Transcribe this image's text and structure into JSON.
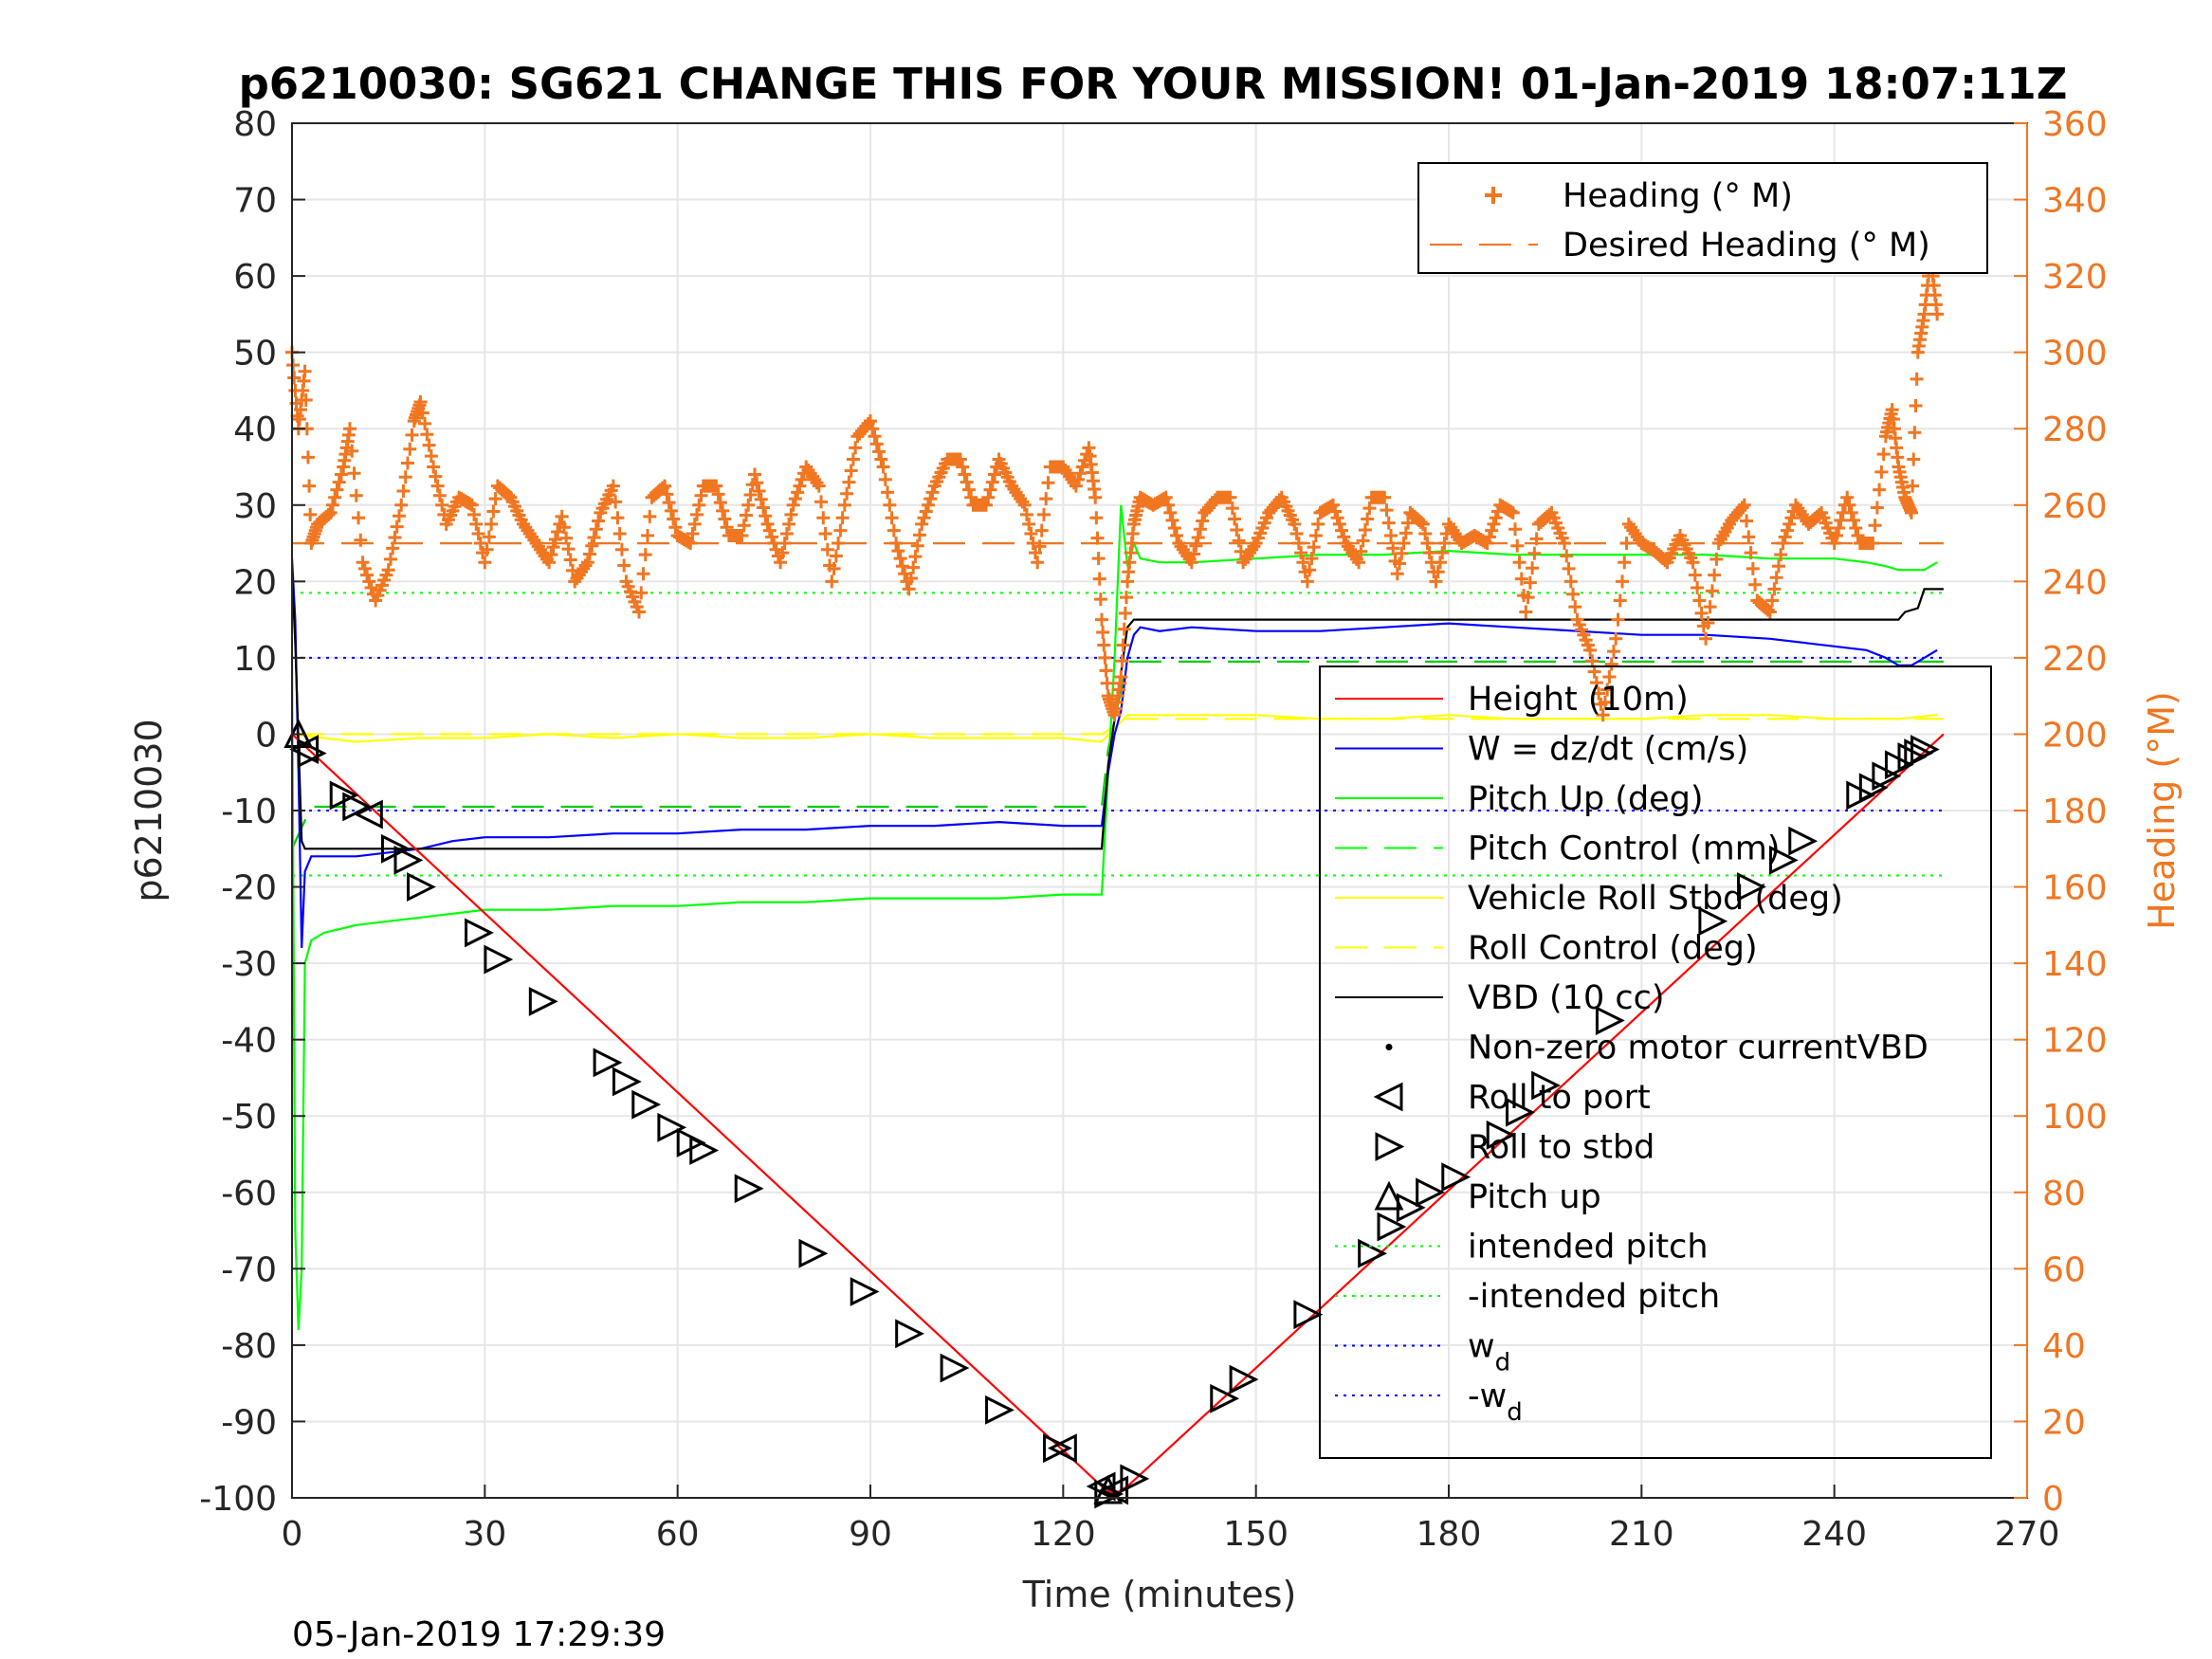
{
  "chart_data": {
    "type": "line",
    "title": "p6210030: SG621 CHANGE THIS FOR YOUR MISSION! 01-Jan-2019 18:07:11Z",
    "xlabel": "Time (minutes)",
    "ylabel": "p6210030",
    "ylabel_right": "Heading (°M)",
    "footer": "05-Jan-2019 17:29:39",
    "xlim": [
      0,
      270
    ],
    "ylim": [
      -100,
      80
    ],
    "ylim_right": [
      0,
      360
    ],
    "x_ticks": [
      "0",
      "30",
      "60",
      "90",
      "120",
      "150",
      "180",
      "210",
      "240",
      "270"
    ],
    "y_ticks": [
      "80",
      "70",
      "60",
      "50",
      "40",
      "30",
      "20",
      "10",
      "0",
      "-10",
      "-20",
      "-30",
      "-40",
      "-50",
      "-60",
      "-70",
      "-80",
      "-90",
      "-100"
    ],
    "y_ticks_right": [
      "360",
      "340",
      "320",
      "300",
      "280",
      "260",
      "240",
      "220",
      "200",
      "180",
      "160",
      "140",
      "120",
      "100",
      "80",
      "60",
      "40",
      "20",
      "0"
    ],
    "grid": true,
    "legend_right_axis": {
      "placement": "top-right",
      "entries": [
        {
          "label": "Heading (° M)",
          "color": "#f07621",
          "style": "plus"
        },
        {
          "label": "Desired Heading (° M)",
          "color": "#f07621",
          "style": "dash"
        }
      ]
    },
    "legend_left_axis": {
      "placement": "right",
      "entries": [
        {
          "label": "Height (10m)",
          "color": "#ff0000",
          "style": "line"
        },
        {
          "label": "W = dz/dt (cm/s)",
          "color": "#0000ff",
          "style": "line"
        },
        {
          "label": "Pitch Up (deg)",
          "color": "#00ff00",
          "style": "line"
        },
        {
          "label": "Pitch Control (mm)",
          "color": "#00ff00",
          "style": "dash"
        },
        {
          "label": "Vehicle Roll Stbd (deg)",
          "color": "#ffff00",
          "style": "line"
        },
        {
          "label": "Roll Control (deg)",
          "color": "#ffff00",
          "style": "dash"
        },
        {
          "label": "VBD (10 cc)",
          "color": "#000000",
          "style": "line"
        },
        {
          "label": "Non-zero motor currentVBD",
          "color": "#000000",
          "style": "dot"
        },
        {
          "label": "Roll to port",
          "color": "#000000",
          "style": "tri-left"
        },
        {
          "label": "Roll to stbd",
          "color": "#000000",
          "style": "tri-right"
        },
        {
          "label": "Pitch up",
          "color": "#000000",
          "style": "tri-up"
        },
        {
          "label": "intended pitch",
          "color": "#00ff00",
          "style": "dotted"
        },
        {
          "label": "-intended pitch",
          "color": "#00ff00",
          "style": "dotted"
        },
        {
          "label": "w",
          "sub": "d",
          "color": "#0000ff",
          "style": "dotted"
        },
        {
          "label": "-w",
          "sub": "d",
          "color": "#0000ff",
          "style": "dotted"
        }
      ]
    },
    "reference_lines": {
      "intended_pitch": 18.5,
      "neg_intended_pitch": -18.5,
      "w_d": 10,
      "neg_w_d": -10
    },
    "series": [
      {
        "name": "Height (10m)",
        "axis": "left",
        "color": "#ff0000",
        "x": [
          0,
          126,
          128,
          130,
          257
        ],
        "y": [
          0,
          -98.5,
          -99.5,
          -98.5,
          0
        ]
      },
      {
        "name": "W = dz/dt (cm/s)",
        "axis": "left",
        "color": "#0000ff",
        "x": [
          0,
          0.5,
          1,
          1.5,
          2,
          3,
          5,
          10,
          15,
          20,
          25,
          30,
          40,
          50,
          60,
          70,
          80,
          90,
          100,
          110,
          120,
          126,
          127,
          128,
          129,
          130,
          131,
          132,
          135,
          140,
          150,
          160,
          170,
          180,
          190,
          200,
          210,
          220,
          230,
          240,
          245,
          248,
          250,
          252,
          254,
          256
        ],
        "y": [
          23,
          15,
          -5,
          -28,
          -18,
          -16,
          -16,
          -16,
          -15.5,
          -15,
          -14,
          -13.5,
          -13.5,
          -13,
          -13,
          -12.5,
          -12.5,
          -12,
          -12,
          -11.5,
          -12,
          -12,
          -5,
          0,
          3,
          10,
          13,
          14,
          13.5,
          14,
          13.5,
          13.5,
          14,
          14.5,
          14,
          13.5,
          13,
          13,
          12.5,
          11.5,
          11,
          10,
          9,
          9,
          10,
          11
        ]
      },
      {
        "name": "Pitch Up (deg)",
        "axis": "left",
        "color": "#00ff00",
        "x": [
          0,
          0.5,
          1,
          1.5,
          2,
          3,
          5,
          10,
          20,
          30,
          40,
          50,
          60,
          70,
          80,
          90,
          100,
          110,
          120,
          126,
          127,
          128,
          129,
          130,
          131,
          132,
          135,
          140,
          150,
          160,
          170,
          180,
          190,
          200,
          210,
          220,
          230,
          240,
          245,
          248,
          250,
          252,
          254,
          256
        ],
        "y": [
          10,
          -65,
          -78,
          -70,
          -30,
          -27,
          -26,
          -25,
          -24,
          -23,
          -23,
          -22.5,
          -22.5,
          -22,
          -22,
          -21.5,
          -21.5,
          -21.5,
          -21,
          -21,
          -5,
          10,
          30,
          22,
          25,
          23,
          22.5,
          22.5,
          23,
          23.5,
          23.5,
          24,
          23.5,
          23.5,
          23.5,
          23.5,
          23,
          23,
          22.5,
          22,
          21.5,
          21.5,
          21.5,
          22.5
        ]
      },
      {
        "name": "Pitch Control (mm)",
        "axis": "left",
        "color": "#00cc00",
        "dashed": true,
        "x": [
          0,
          3,
          126,
          127,
          130,
          257
        ],
        "y": [
          -15,
          -9.5,
          -9.5,
          -2,
          9.5,
          9.5
        ]
      },
      {
        "name": "Vehicle Roll Stbd (deg)",
        "axis": "left",
        "color": "#ffff00",
        "x": [
          0,
          5,
          10,
          20,
          30,
          40,
          50,
          60,
          70,
          80,
          90,
          100,
          110,
          120,
          126,
          130,
          140,
          150,
          160,
          170,
          180,
          190,
          200,
          210,
          220,
          230,
          240,
          250,
          256
        ],
        "y": [
          0,
          -0.5,
          -1,
          -0.5,
          -0.5,
          0,
          -0.5,
          0,
          -0.5,
          -0.5,
          0,
          -0.5,
          -0.5,
          -0.5,
          -1,
          2.5,
          2.5,
          2.5,
          2,
          2,
          2.5,
          2,
          2,
          2,
          2.5,
          2.5,
          2,
          2,
          2.5
        ]
      },
      {
        "name": "Roll Control (deg)",
        "axis": "left",
        "color": "#ffff00",
        "dashed": true,
        "x": [
          0,
          126,
          130,
          257
        ],
        "y": [
          0,
          0,
          2,
          2
        ]
      },
      {
        "name": "VBD (10 cc)",
        "axis": "left",
        "color": "#000000",
        "x": [
          0,
          0.5,
          1.5,
          2,
          126,
          127,
          130,
          131,
          250,
          251,
          253,
          254,
          257
        ],
        "y": [
          21,
          12,
          -14,
          -15,
          -15,
          -4,
          14,
          15,
          15,
          16,
          16.5,
          19,
          19
        ]
      },
      {
        "name": "Heading (° M)",
        "axis": "right",
        "color": "#f07621",
        "marker": "plus",
        "x": [
          0,
          1,
          2,
          3,
          4,
          6,
          8,
          9,
          11,
          13,
          15,
          17,
          19,
          20,
          22,
          24,
          26,
          28,
          30,
          32,
          34,
          36,
          38,
          40,
          42,
          44,
          46,
          48,
          50,
          52,
          54,
          56,
          58,
          60,
          62,
          64,
          66,
          68,
          70,
          72,
          74,
          76,
          78,
          80,
          82,
          84,
          86,
          88,
          90,
          92,
          94,
          96,
          98,
          100,
          102,
          104,
          106,
          108,
          110,
          112,
          114,
          116,
          118,
          120,
          122,
          124,
          125,
          126,
          127,
          128,
          129,
          130,
          131,
          132,
          134,
          136,
          138,
          140,
          142,
          144,
          146,
          148,
          150,
          152,
          154,
          156,
          158,
          160,
          162,
          164,
          166,
          168,
          170,
          172,
          174,
          176,
          178,
          180,
          182,
          184,
          186,
          188,
          190,
          192,
          194,
          196,
          198,
          200,
          202,
          204,
          206,
          208,
          210,
          212,
          214,
          216,
          218,
          220,
          222,
          224,
          226,
          228,
          230,
          232,
          234,
          236,
          238,
          240,
          242,
          244,
          246,
          248,
          249,
          250,
          251,
          252,
          253,
          254,
          255,
          256
        ],
        "y": [
          300,
          280,
          295,
          250,
          255,
          258,
          270,
          280,
          245,
          235,
          243,
          260,
          282,
          287,
          270,
          255,
          262,
          260,
          245,
          265,
          262,
          255,
          250,
          245,
          257,
          240,
          245,
          258,
          265,
          240,
          232,
          262,
          265,
          252,
          250,
          265,
          265,
          252,
          252,
          268,
          255,
          245,
          260,
          270,
          265,
          240,
          260,
          278,
          282,
          270,
          250,
          238,
          255,
          265,
          272,
          272,
          260,
          260,
          272,
          265,
          260,
          245,
          270,
          270,
          265,
          275,
          262,
          230,
          210,
          205,
          215,
          240,
          255,
          262,
          260,
          262,
          250,
          245,
          258,
          262,
          262,
          245,
          250,
          258,
          262,
          255,
          240,
          258,
          260,
          250,
          245,
          262,
          262,
          242,
          258,
          255,
          240,
          255,
          250,
          252,
          250,
          260,
          258,
          232,
          255,
          258,
          250,
          230,
          222,
          205,
          225,
          255,
          250,
          248,
          245,
          252,
          245,
          225,
          250,
          256,
          260,
          235,
          232,
          250,
          260,
          255,
          258,
          250,
          262,
          250,
          250,
          278,
          285,
          270,
          262,
          258,
          300,
          310,
          325,
          310
        ]
      },
      {
        "name": "Desired Heading (° M)",
        "axis": "right",
        "color": "#f07621",
        "dashed": true,
        "x": [
          0,
          257
        ],
        "y": [
          250,
          250
        ]
      }
    ],
    "markers": {
      "roll_to_port": {
        "x": [
          2,
          12,
          120,
          126,
          128
        ],
        "y": [
          -2,
          -10.5,
          -93.5,
          -98.5,
          -99
        ]
      },
      "roll_to_stbd": {
        "x": [
          3,
          8,
          10,
          16,
          18,
          20,
          29,
          32,
          39,
          49,
          52,
          55,
          59,
          62,
          64,
          71,
          81,
          89,
          96,
          103,
          110,
          119,
          127,
          131,
          145,
          148,
          158,
          168,
          171,
          174,
          177,
          181,
          188,
          191,
          195,
          205,
          221,
          227,
          232,
          235,
          244,
          246,
          248,
          250,
          252,
          253,
          254
        ],
        "y": [
          -2.5,
          -8,
          -9.5,
          -15,
          -16.5,
          -20,
          -26,
          -29.5,
          -35,
          -43,
          -45.5,
          -48.5,
          -51.5,
          -53.5,
          -54.5,
          -59.5,
          -68,
          -73,
          -78.5,
          -83,
          -88.5,
          -93.5,
          -99.5,
          -97.5,
          -87,
          -84.5,
          -76,
          -68,
          -64.5,
          -62,
          -60,
          -58,
          -52.5,
          -49.5,
          -46,
          -37.5,
          -24.5,
          -20,
          -16.5,
          -14,
          -8,
          -7,
          -5.5,
          -4,
          -3,
          -2.5,
          -2
        ]
      },
      "pitch_up": {
        "x": [
          1,
          127
        ],
        "y": [
          0,
          -99
        ]
      }
    }
  }
}
